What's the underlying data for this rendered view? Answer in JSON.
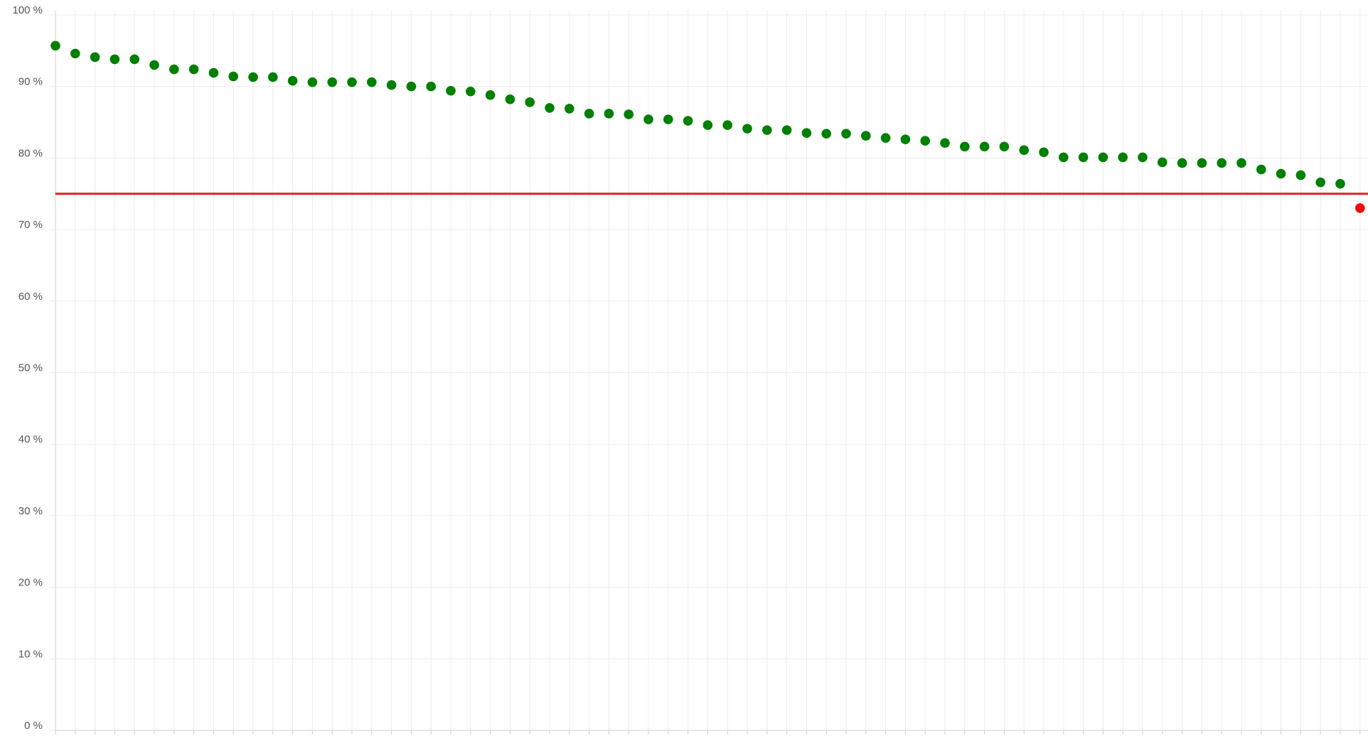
{
  "chart_data": {
    "type": "scatter",
    "title": "",
    "xlabel": "",
    "ylabel": "",
    "ylim": [
      0,
      100
    ],
    "y_tick_labels": [
      "0 %",
      "10 %",
      "20 %",
      "30 %",
      "40 %",
      "50 %",
      "60 %",
      "70 %",
      "80 %",
      "90 %",
      "100 %"
    ],
    "x_tick_count": 68,
    "grid": true,
    "threshold": {
      "value": 75,
      "color": "#e02020"
    },
    "series": [
      {
        "color": "#008000",
        "values": [
          95.7,
          94.6,
          94.1,
          93.8,
          93.8,
          93.0,
          92.4,
          92.4,
          91.9,
          91.4,
          91.3,
          91.3,
          90.8,
          90.6,
          90.6,
          90.6,
          90.6,
          90.2,
          90.0,
          90.0,
          89.4,
          89.3,
          88.8,
          88.2,
          87.8,
          87.0,
          86.9,
          86.2,
          86.2,
          86.1,
          85.4,
          85.4,
          85.2,
          84.6,
          84.6,
          84.1,
          83.9,
          83.9,
          83.5,
          83.4,
          83.4,
          83.1,
          82.8,
          82.6,
          82.4,
          82.1,
          81.6,
          81.6,
          81.6,
          81.1,
          80.8,
          80.1,
          80.1,
          80.1,
          80.1,
          80.1,
          79.4,
          79.3,
          79.3,
          79.3,
          79.3,
          78.4,
          77.8,
          77.6,
          76.6,
          76.4
        ]
      },
      {
        "color": "#ff0000",
        "values_at_end": [
          73.0
        ]
      }
    ]
  }
}
